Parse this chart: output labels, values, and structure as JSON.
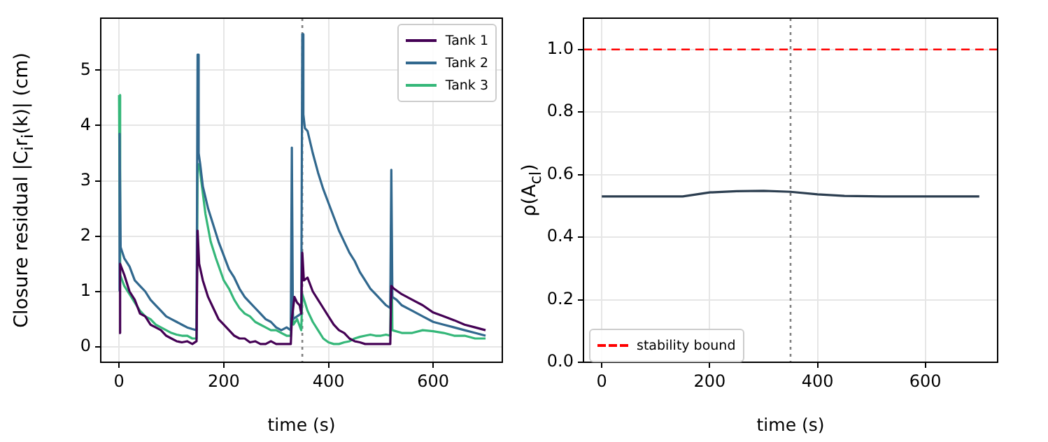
{
  "chart_data": [
    {
      "type": "line",
      "xlabel": "time (s)",
      "ylabel": "Closure residual |C$_{i}$r$_{i}$(k)| (cm)",
      "xlim": [
        -35,
        732
      ],
      "xticks": [
        0,
        200,
        400,
        600
      ],
      "ylim": [
        -0.28,
        5.94
      ],
      "yticks": [
        0,
        1,
        2,
        3,
        4,
        5
      ],
      "grid": true,
      "legend": "top right",
      "ref_lines": [
        {
          "axis": "x",
          "value": 350,
          "color": "#808080",
          "line_style": "dotted"
        }
      ],
      "series": [
        {
          "name": "Tank 1",
          "color": "#440154",
          "x": [
            0,
            2,
            10,
            20,
            30,
            40,
            50,
            60,
            70,
            80,
            90,
            100,
            110,
            120,
            130,
            140,
            148,
            150,
            153,
            160,
            170,
            180,
            190,
            200,
            210,
            220,
            230,
            240,
            250,
            260,
            270,
            280,
            290,
            300,
            310,
            320,
            328,
            330,
            335,
            340,
            345,
            348,
            350,
            353,
            360,
            370,
            380,
            390,
            400,
            410,
            420,
            430,
            440,
            450,
            460,
            470,
            480,
            490,
            500,
            510,
            518,
            520,
            525,
            540,
            560,
            580,
            600,
            620,
            640,
            660,
            680,
            700
          ],
          "values": [
            0.25,
            1.5,
            1.3,
            1.0,
            0.85,
            0.6,
            0.55,
            0.4,
            0.35,
            0.3,
            0.2,
            0.15,
            0.1,
            0.08,
            0.1,
            0.05,
            0.1,
            2.1,
            1.5,
            1.2,
            0.9,
            0.7,
            0.5,
            0.4,
            0.3,
            0.2,
            0.15,
            0.15,
            0.08,
            0.1,
            0.05,
            0.05,
            0.1,
            0.05,
            0.05,
            0.05,
            0.05,
            0.5,
            0.9,
            0.8,
            0.75,
            0.6,
            1.7,
            1.2,
            1.25,
            1.0,
            0.85,
            0.7,
            0.55,
            0.4,
            0.3,
            0.25,
            0.15,
            0.1,
            0.08,
            0.05,
            0.05,
            0.05,
            0.05,
            0.05,
            0.05,
            1.1,
            1.05,
            0.95,
            0.85,
            0.75,
            0.62,
            0.55,
            0.48,
            0.4,
            0.35,
            0.3
          ]
        },
        {
          "name": "Tank 2",
          "color": "#31688e",
          "x": [
            0,
            1,
            3,
            10,
            20,
            30,
            40,
            50,
            60,
            70,
            80,
            90,
            100,
            110,
            120,
            130,
            140,
            148,
            150,
            152,
            155,
            160,
            170,
            180,
            190,
            200,
            210,
            220,
            230,
            240,
            250,
            260,
            270,
            280,
            290,
            300,
            310,
            320,
            328,
            330,
            332,
            340,
            348,
            350,
            352,
            355,
            360,
            370,
            380,
            390,
            400,
            410,
            420,
            430,
            440,
            450,
            460,
            470,
            480,
            490,
            500,
            510,
            518,
            520,
            522,
            530,
            540,
            560,
            580,
            600,
            620,
            640,
            660,
            680,
            700
          ],
          "values": [
            1.0,
            3.85,
            1.8,
            1.6,
            1.45,
            1.2,
            1.1,
            1.0,
            0.85,
            0.75,
            0.65,
            0.55,
            0.5,
            0.45,
            0.4,
            0.35,
            0.32,
            0.3,
            5.28,
            3.5,
            3.3,
            2.9,
            2.5,
            2.2,
            1.9,
            1.65,
            1.4,
            1.25,
            1.05,
            0.9,
            0.8,
            0.7,
            0.6,
            0.5,
            0.45,
            0.35,
            0.3,
            0.35,
            0.3,
            3.6,
            0.5,
            0.55,
            0.6,
            5.65,
            4.2,
            3.95,
            3.9,
            3.5,
            3.15,
            2.85,
            2.6,
            2.35,
            2.1,
            1.9,
            1.7,
            1.55,
            1.35,
            1.2,
            1.05,
            0.95,
            0.85,
            0.75,
            0.7,
            3.2,
            0.9,
            0.85,
            0.75,
            0.65,
            0.55,
            0.45,
            0.4,
            0.35,
            0.3,
            0.25,
            0.2
          ]
        },
        {
          "name": "Tank 3",
          "color": "#35b779",
          "x": [
            0,
            2,
            10,
            20,
            30,
            40,
            50,
            60,
            70,
            80,
            90,
            100,
            110,
            120,
            130,
            140,
            148,
            150,
            153,
            157,
            165,
            175,
            185,
            200,
            210,
            220,
            230,
            240,
            250,
            260,
            270,
            280,
            290,
            300,
            310,
            320,
            328,
            330,
            333,
            340,
            348,
            350,
            355,
            360,
            370,
            380,
            390,
            400,
            410,
            420,
            430,
            440,
            450,
            460,
            470,
            480,
            490,
            500,
            510,
            518,
            520,
            522,
            540,
            560,
            580,
            600,
            620,
            640,
            660,
            680,
            700
          ],
          "values": [
            4.55,
            1.3,
            1.1,
            0.95,
            0.8,
            0.65,
            0.55,
            0.5,
            0.4,
            0.35,
            0.3,
            0.25,
            0.22,
            0.2,
            0.2,
            0.15,
            0.15,
            3.3,
            3.3,
            3.0,
            2.4,
            1.9,
            1.6,
            1.2,
            1.05,
            0.85,
            0.7,
            0.6,
            0.55,
            0.45,
            0.4,
            0.35,
            0.3,
            0.3,
            0.25,
            0.2,
            0.2,
            1.0,
            0.4,
            0.5,
            0.3,
            0.95,
            0.8,
            0.65,
            0.45,
            0.3,
            0.15,
            0.08,
            0.05,
            0.05,
            0.08,
            0.1,
            0.15,
            0.18,
            0.2,
            0.22,
            0.2,
            0.2,
            0.22,
            0.2,
            2.2,
            0.3,
            0.25,
            0.25,
            0.3,
            0.28,
            0.25,
            0.2,
            0.2,
            0.15,
            0.15
          ]
        }
      ]
    },
    {
      "type": "line",
      "xlabel": "time (s)",
      "ylabel": "ρ(A$_{cl}$)",
      "xlim": [
        -34,
        734
      ],
      "xticks": [
        0,
        200,
        400,
        600
      ],
      "ylim": [
        0,
        1.1
      ],
      "yticks": [
        {
          "value": 0,
          "label": "0.0"
        },
        {
          "value": 0.2,
          "label": "0.2"
        },
        {
          "value": 0.4,
          "label": "0.4"
        },
        {
          "value": 0.6,
          "label": "0.6"
        },
        {
          "value": 0.8,
          "label": "0.8"
        },
        {
          "value": 1,
          "label": "1.0"
        }
      ],
      "grid": true,
      "legend": "bottom left",
      "ref_lines": [
        {
          "axis": "y",
          "value": 1,
          "label": "stability bound",
          "color": "#ff0000",
          "line_style": "dashed"
        },
        {
          "axis": "x",
          "value": 350,
          "color": "#808080",
          "line_style": "dotted"
        }
      ],
      "series": [
        {
          "color": "#2c3e50",
          "x": [
            0,
            150,
            200,
            250,
            300,
            350,
            400,
            450,
            520,
            600,
            700
          ],
          "values": [
            0.53,
            0.53,
            0.543,
            0.547,
            0.548,
            0.545,
            0.537,
            0.532,
            0.53,
            0.53,
            0.53
          ]
        }
      ]
    }
  ]
}
